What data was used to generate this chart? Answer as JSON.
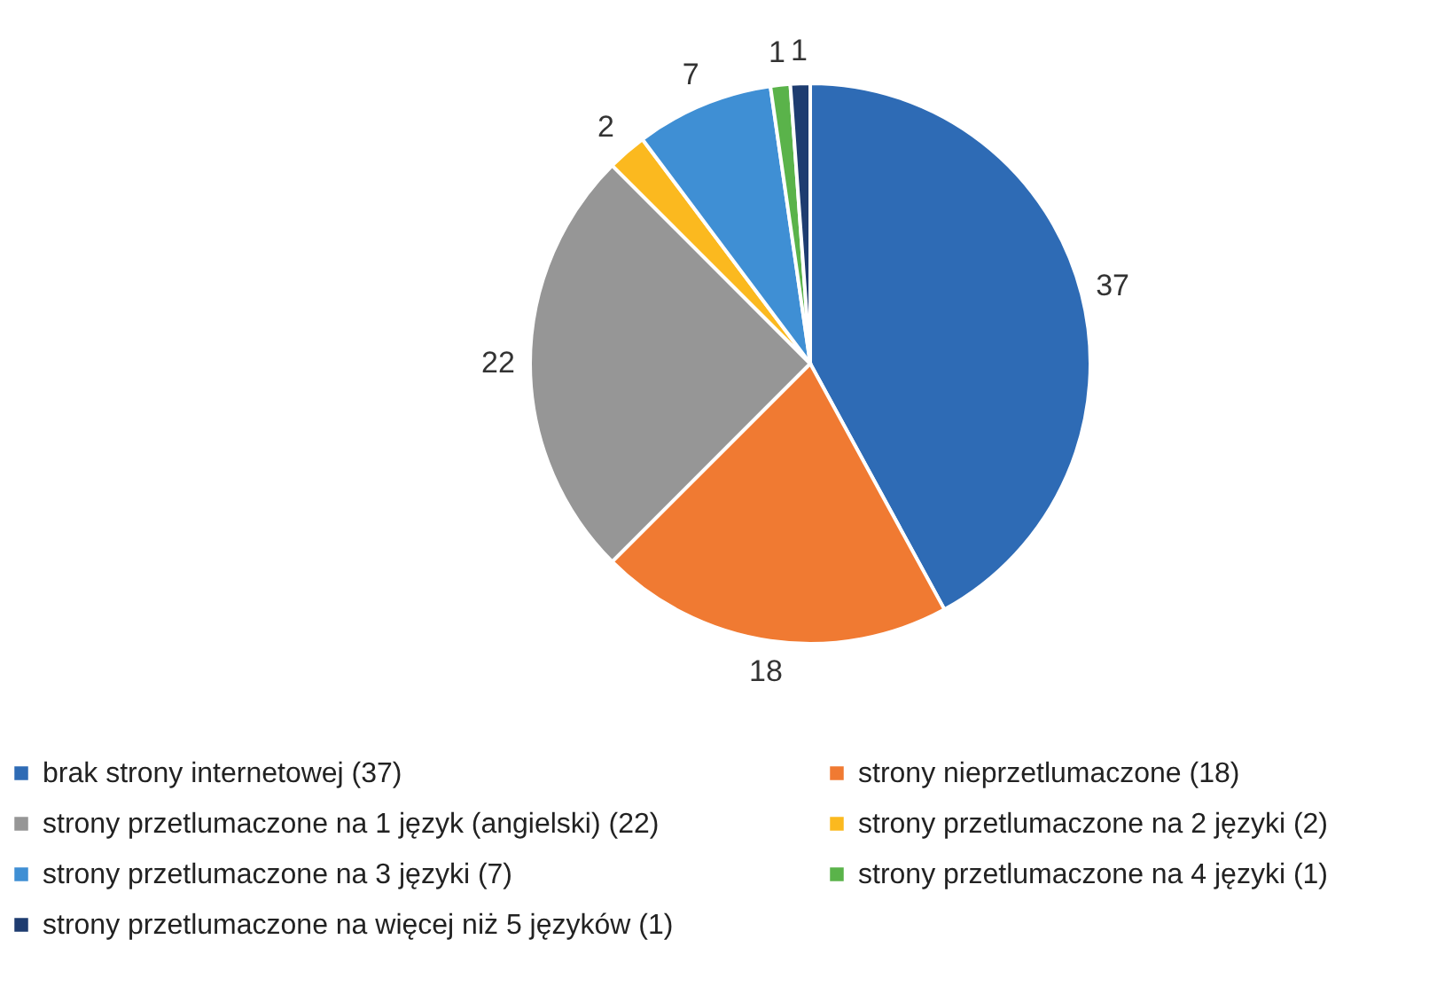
{
  "chart_data": {
    "type": "pie",
    "categories": [
      "brak strony internetowej (37)",
      "strony nieprzetlumaczone (18)",
      "strony przetlumaczone na 1 język (angielski) (22)",
      "strony przetlumaczone na 2 języki (2)",
      "strony przetlumaczone na 3 języki (7)",
      "strony przetlumaczone na 4 języki (1)",
      "strony przetlumaczone na więcej niż 5 języków (1)"
    ],
    "values": [
      37,
      18,
      22,
      2,
      7,
      1,
      1
    ],
    "colors": [
      "#2e6bb5",
      "#f07a32",
      "#969696",
      "#fbb91f",
      "#3f8fd4",
      "#5ab34a",
      "#1e3c70"
    ],
    "data_labels": true,
    "legend": "bottom"
  }
}
